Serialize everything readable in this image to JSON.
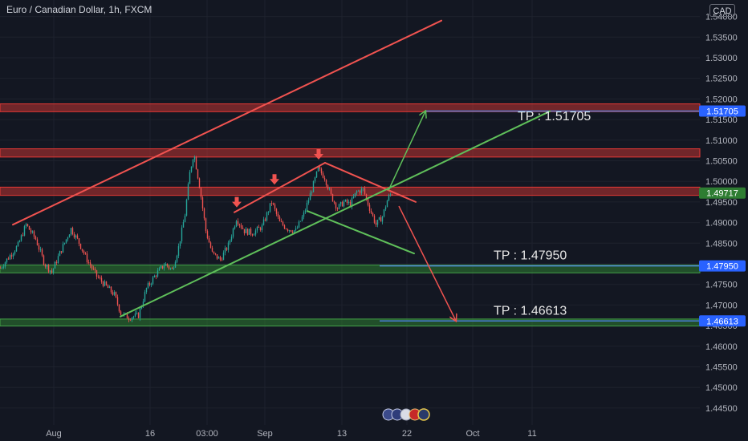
{
  "header": {
    "symbol_title": "Euro / Canadian Dollar, 1h, FXCM",
    "currency_badge": "CAD"
  },
  "colors": {
    "background": "#131722",
    "grid": "#1e222d",
    "text": "#b2b5be",
    "trend_red": "#f05350",
    "trend_green": "#5fbf5a",
    "resistance_zone": "#e53935",
    "support_zone": "#2e7d32",
    "tp_line": "#4a7fd6",
    "price_label": "#2962ff",
    "candle_up": "#26a69a",
    "candle_down": "#ef5350"
  },
  "chart_data": {
    "type": "candlestick",
    "title": "",
    "xlabel": "",
    "ylabel": "",
    "ylim": [
      1.4409,
      1.544
    ],
    "y_ticks": [
      "1.54000",
      "1.53500",
      "1.53000",
      "1.52500",
      "1.52000",
      "1.51500",
      "1.51000",
      "1.50500",
      "1.50000",
      "1.49500",
      "1.49000",
      "1.48500",
      "1.48000",
      "1.47500",
      "1.47000",
      "1.46500",
      "1.46000",
      "1.45500",
      "1.45000",
      "1.44500"
    ],
    "x_ticks": [
      "Aug",
      "16",
      "03:00",
      "Sep",
      "13",
      "22",
      "Oct",
      "11"
    ],
    "grid": true,
    "price_labels": [
      {
        "name": "tp1",
        "value": "1.51705"
      },
      {
        "name": "current",
        "value": "1.49717"
      },
      {
        "name": "tp2",
        "value": "1.47950"
      },
      {
        "name": "tp3",
        "value": "1.46613"
      }
    ],
    "annotations": [
      {
        "name": "tp-1",
        "text": "TP : 1.51705"
      },
      {
        "name": "tp-2",
        "text": "TP : 1.47950"
      },
      {
        "name": "tp-3",
        "text": "TP : 1.46613"
      }
    ],
    "zones": [
      {
        "name": "resistance-zone-upper",
        "kind": "resistance",
        "from": 1.5169,
        "to": 1.5188
      },
      {
        "name": "resistance-zone-middle",
        "kind": "resistance",
        "from": 1.5059,
        "to": 1.5079
      },
      {
        "name": "resistance-zone-lower",
        "kind": "resistance",
        "from": 1.4966,
        "to": 1.4986
      },
      {
        "name": "support-zone-upper",
        "kind": "support",
        "from": 1.4778,
        "to": 1.4797
      },
      {
        "name": "support-zone-lower",
        "kind": "support",
        "from": 1.4649,
        "to": 1.4666
      }
    ],
    "series": [
      {
        "values": [
          {
            "x": 0,
            "y": 1.479
          },
          {
            "x": 10,
            "y": 1.4815
          },
          {
            "x": 22,
            "y": 1.4845
          },
          {
            "x": 32,
            "y": 1.4895
          },
          {
            "x": 44,
            "y": 1.486
          },
          {
            "x": 55,
            "y": 1.48
          },
          {
            "x": 64,
            "y": 1.478
          },
          {
            "x": 75,
            "y": 1.483
          },
          {
            "x": 88,
            "y": 1.4885
          },
          {
            "x": 97,
            "y": 1.4855
          },
          {
            "x": 108,
            "y": 1.481
          },
          {
            "x": 120,
            "y": 1.477
          },
          {
            "x": 132,
            "y": 1.4745
          },
          {
            "x": 142,
            "y": 1.4725
          },
          {
            "x": 150,
            "y": 1.468
          },
          {
            "x": 160,
            "y": 1.467
          },
          {
            "x": 172,
            "y": 1.4675
          },
          {
            "x": 182,
            "y": 1.474
          },
          {
            "x": 194,
            "y": 1.4775
          },
          {
            "x": 205,
            "y": 1.48
          },
          {
            "x": 214,
            "y": 1.4785
          },
          {
            "x": 222,
            "y": 1.484
          },
          {
            "x": 230,
            "y": 1.492
          },
          {
            "x": 236,
            "y": 1.502
          },
          {
            "x": 241,
            "y": 1.507
          },
          {
            "x": 248,
            "y": 1.499
          },
          {
            "x": 256,
            "y": 1.488
          },
          {
            "x": 264,
            "y": 1.4825
          },
          {
            "x": 274,
            "y": 1.481
          },
          {
            "x": 284,
            "y": 1.4845
          },
          {
            "x": 294,
            "y": 1.491
          },
          {
            "x": 304,
            "y": 1.488
          },
          {
            "x": 314,
            "y": 1.4875
          },
          {
            "x": 326,
            "y": 1.489
          },
          {
            "x": 338,
            "y": 1.495
          },
          {
            "x": 348,
            "y": 1.49
          },
          {
            "x": 358,
            "y": 1.4885
          },
          {
            "x": 368,
            "y": 1.488
          },
          {
            "x": 378,
            "y": 1.492
          },
          {
            "x": 388,
            "y": 1.498
          },
          {
            "x": 396,
            "y": 1.503
          },
          {
            "x": 404,
            "y": 1.501
          },
          {
            "x": 412,
            "y": 1.4965
          },
          {
            "x": 420,
            "y": 1.4935
          },
          {
            "x": 428,
            "y": 1.495
          },
          {
            "x": 436,
            "y": 1.4945
          },
          {
            "x": 444,
            "y": 1.4975
          },
          {
            "x": 452,
            "y": 1.498
          },
          {
            "x": 460,
            "y": 1.4935
          },
          {
            "x": 468,
            "y": 1.4895
          },
          {
            "x": 476,
            "y": 1.4915
          },
          {
            "x": 483,
            "y": 1.496
          },
          {
            "x": 488,
            "y": 1.4972
          }
        ]
      }
    ],
    "trendlines": [
      {
        "name": "channel-top-line",
        "color": "red",
        "from": [
          16,
          1.4895
        ],
        "to": [
          550,
          1.539
        ]
      },
      {
        "name": "wedge-upper-line",
        "color": "red",
        "from": [
          292,
          1.4925
        ],
        "to": [
          405,
          1.5045
        ]
      },
      {
        "name": "descending-line",
        "color": "red",
        "from": [
          405,
          1.5045
        ],
        "to": [
          518,
          1.495
        ]
      },
      {
        "name": "rising-support-line",
        "color": "green",
        "from": [
          150,
          1.4672
        ],
        "to": [
          685,
          1.517
        ]
      },
      {
        "name": "wedge-lower-line",
        "color": "green",
        "from": [
          383,
          1.4928
        ],
        "to": [
          516,
          1.4825
        ]
      }
    ],
    "arrows": [
      {
        "name": "projection-arrow-up",
        "color": "green",
        "from": [
          484,
          1.4978
        ],
        "to": [
          530,
          1.517
        ]
      },
      {
        "name": "projection-arrow-down",
        "color": "red",
        "from": [
          497,
          1.494
        ],
        "to": [
          568,
          1.4662
        ]
      }
    ],
    "peak_markers": [
      {
        "name": "peak-marker-1",
        "at": [
          295,
          1.4937
        ]
      },
      {
        "name": "peak-marker-2",
        "at": [
          342,
          1.4992
        ]
      },
      {
        "name": "peak-marker-3",
        "at": [
          397,
          1.5053
        ]
      }
    ]
  }
}
